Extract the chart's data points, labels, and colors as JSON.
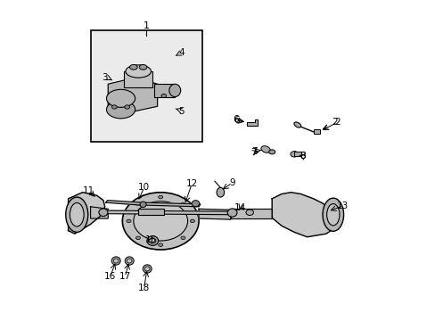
{
  "bg_color": "#ffffff",
  "line_color": "#000000",
  "part_color": "#d0d0d0",
  "box_bg": "#e8e8e8",
  "figsize": [
    4.89,
    3.6
  ],
  "dpi": 100
}
